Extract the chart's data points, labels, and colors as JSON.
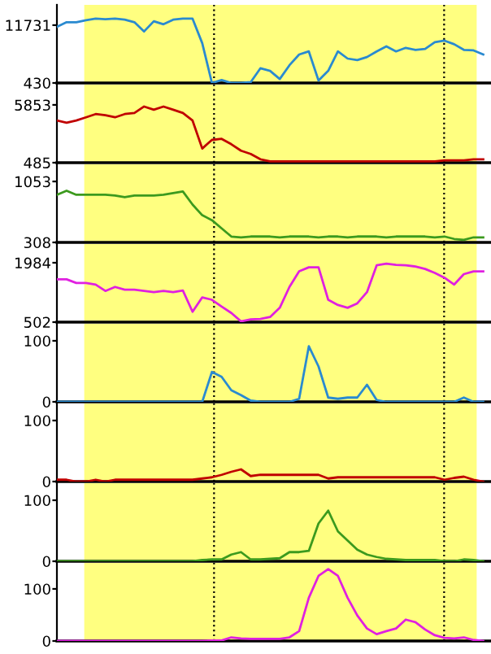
{
  "chart_data": [
    {
      "type": "line",
      "categories": [
        null,
        null,
        null,
        null,
        null,
        null,
        null,
        null,
        null,
        null,
        null,
        null,
        null,
        null,
        null,
        null,
        null,
        null,
        null,
        null,
        null,
        null,
        null,
        null,
        null,
        null,
        null,
        null,
        null,
        null,
        null,
        null,
        null,
        null,
        null,
        null,
        null,
        null,
        null,
        null,
        null,
        null,
        null,
        null,
        null
      ],
      "series": [
        {
          "color": "#2a8ad0",
          "values": [
            11400,
            12300,
            12300,
            12700,
            13000,
            12900,
            13000,
            12800,
            12300,
            10500,
            12500,
            11900,
            12800,
            13000,
            13000,
            8200,
            430,
            1000,
            430,
            430,
            600,
            3300,
            2800,
            1200,
            3900,
            6000,
            6600,
            900,
            2800,
            6600,
            5200,
            4900,
            5500,
            6600,
            7600,
            6600,
            7300,
            6900,
            7100,
            8400,
            8700,
            8000,
            6900,
            6800,
            6000
          ]
        }
      ],
      "ylim": [
        430,
        15700
      ],
      "yticks": [
        430,
        11731
      ],
      "tick_labels": "y"
    },
    {
      "type": "line",
      "categories": [
        null,
        null,
        null,
        null,
        null,
        null,
        null,
        null,
        null,
        null,
        null,
        null,
        null,
        null,
        null,
        null,
        null,
        null,
        null,
        null,
        null,
        null,
        null,
        null,
        null,
        null,
        null,
        null,
        null,
        null,
        null,
        null,
        null,
        null,
        null,
        null,
        null,
        null,
        null,
        null,
        null,
        null,
        null,
        null,
        null
      ],
      "series": [
        {
          "color": "#c00000",
          "values": [
            4400,
            4200,
            4400,
            4700,
            5000,
            4900,
            4700,
            5000,
            5100,
            5700,
            5400,
            5700,
            5400,
            5100,
            4400,
            1800,
            2600,
            2700,
            2200,
            1600,
            1300,
            800,
            600,
            600,
            600,
            600,
            600,
            600,
            600,
            600,
            600,
            600,
            600,
            600,
            600,
            600,
            600,
            600,
            600,
            600,
            700,
            700,
            700,
            800,
            800
          ]
        }
      ],
      "ylim": [
        485,
        7740
      ],
      "yticks": [
        485,
        5853
      ],
      "tick_labels": "y"
    },
    {
      "type": "line",
      "categories": [
        null,
        null,
        null,
        null,
        null,
        null,
        null,
        null,
        null,
        null,
        null,
        null,
        null,
        null,
        null,
        null,
        null,
        null,
        null,
        null,
        null,
        null,
        null,
        null,
        null,
        null,
        null,
        null,
        null,
        null,
        null,
        null,
        null,
        null,
        null,
        null,
        null,
        null,
        null,
        null,
        null,
        null,
        null,
        null,
        null
      ],
      "series": [
        {
          "color": "#3c9a1e",
          "values": [
            890,
            940,
            890,
            890,
            890,
            890,
            880,
            860,
            880,
            880,
            880,
            890,
            910,
            930,
            770,
            640,
            580,
            480,
            380,
            370,
            380,
            380,
            380,
            370,
            380,
            380,
            380,
            370,
            380,
            380,
            370,
            380,
            380,
            380,
            370,
            380,
            380,
            380,
            380,
            370,
            380,
            350,
            340,
            370,
            370
          ]
        }
      ],
      "ylim": [
        308,
        1263
      ],
      "yticks": [
        308,
        1053
      ],
      "tick_labels": "y"
    },
    {
      "type": "line",
      "categories": [
        null,
        null,
        null,
        null,
        null,
        null,
        null,
        null,
        null,
        null,
        null,
        null,
        null,
        null,
        null,
        null,
        null,
        null,
        null,
        null,
        null,
        null,
        null,
        null,
        null,
        null,
        null,
        null,
        null,
        null,
        null,
        null,
        null,
        null,
        null,
        null,
        null,
        null,
        null,
        null,
        null,
        null,
        null,
        null,
        null
      ],
      "series": [
        {
          "color": "#e020e0",
          "values": [
            1570,
            1570,
            1480,
            1480,
            1440,
            1280,
            1380,
            1310,
            1310,
            1280,
            1250,
            1280,
            1250,
            1290,
            760,
            1120,
            1060,
            890,
            730,
            520,
            570,
            580,
            630,
            860,
            1380,
            1770,
            1870,
            1870,
            1060,
            930,
            860,
            970,
            1250,
            1920,
            1960,
            1930,
            1920,
            1890,
            1830,
            1730,
            1610,
            1440,
            1700,
            1770,
            1770
          ]
        }
      ],
      "ylim": [
        502,
        2452
      ],
      "yticks": [
        502,
        1984
      ],
      "tick_labels": "y"
    },
    {
      "type": "line",
      "categories": [
        null,
        null,
        null,
        null,
        null,
        null,
        null,
        null,
        null,
        null,
        null,
        null,
        null,
        null,
        null,
        null,
        null,
        null,
        null,
        null,
        null,
        null,
        null,
        null,
        null,
        null,
        null,
        null,
        null,
        null,
        null,
        null,
        null,
        null,
        null,
        null,
        null,
        null,
        null,
        null,
        null,
        null,
        null,
        null,
        null
      ],
      "series": [
        {
          "color": "#2a8ad0",
          "values": [
            0,
            0,
            0,
            0,
            0,
            0,
            0,
            0,
            0,
            0,
            0,
            0,
            0,
            0,
            0,
            0,
            49,
            41,
            19,
            11,
            2,
            0,
            0,
            0,
            0,
            5,
            91,
            58,
            7,
            5,
            7,
            7,
            28,
            3,
            0,
            0,
            0,
            0,
            0,
            0,
            0,
            0,
            7,
            0,
            0
          ]
        }
      ],
      "ylim": [
        0,
        128
      ],
      "yticks": [
        0,
        100
      ],
      "tick_labels": "y"
    },
    {
      "type": "line",
      "categories": [
        null,
        null,
        null,
        null,
        null,
        null,
        null,
        null,
        null,
        null,
        null,
        null,
        null,
        null,
        null,
        null,
        null,
        null,
        null,
        null,
        null,
        null,
        null,
        null,
        null,
        null,
        null,
        null,
        null,
        null,
        null,
        null,
        null,
        null,
        null,
        null,
        null,
        null,
        null,
        null,
        null,
        null,
        null,
        null,
        null
      ],
      "series": [
        {
          "color": "#c00000",
          "values": [
            3,
            3,
            0,
            0,
            3,
            0,
            3,
            3,
            3,
            3,
            3,
            3,
            3,
            3,
            3,
            5,
            7,
            11,
            16,
            20,
            9,
            11,
            11,
            11,
            11,
            11,
            11,
            11,
            5,
            7,
            7,
            7,
            7,
            7,
            7,
            7,
            7,
            7,
            7,
            7,
            3,
            6,
            8,
            3,
            0
          ]
        }
      ],
      "ylim": [
        0,
        128
      ],
      "yticks": [
        0,
        100
      ],
      "tick_labels": "y"
    },
    {
      "type": "line",
      "categories": [
        null,
        null,
        null,
        null,
        null,
        null,
        null,
        null,
        null,
        null,
        null,
        null,
        null,
        null,
        null,
        null,
        null,
        null,
        null,
        null,
        null,
        null,
        null,
        null,
        null,
        null,
        null,
        null,
        null,
        null,
        null,
        null,
        null,
        null,
        null,
        null,
        null,
        null,
        null,
        null,
        null,
        null,
        null,
        null,
        null
      ],
      "series": [
        {
          "color": "#3c9a1e",
          "values": [
            0,
            0,
            0,
            0,
            0,
            0,
            0,
            0,
            0,
            0,
            0,
            0,
            0,
            0,
            0,
            2,
            3,
            3,
            11,
            15,
            3,
            3,
            4,
            5,
            15,
            15,
            17,
            62,
            83,
            49,
            34,
            19,
            11,
            7,
            4,
            3,
            2,
            2,
            2,
            2,
            0,
            0,
            3,
            2,
            0
          ]
        }
      ],
      "ylim": [
        0,
        128
      ],
      "yticks": [
        0,
        100
      ],
      "tick_labels": "y"
    },
    {
      "type": "line",
      "categories": [
        null,
        null,
        null,
        null,
        null,
        null,
        null,
        null,
        null,
        null,
        null,
        null,
        null,
        null,
        null,
        null,
        null,
        null,
        null,
        null,
        null,
        null,
        null,
        null,
        null,
        null,
        null,
        null,
        null,
        null,
        null,
        null,
        null,
        null,
        null,
        null,
        null,
        null,
        null,
        null,
        null,
        null,
        null,
        null,
        null
      ],
      "series": [
        {
          "color": "#e020e0",
          "values": [
            0,
            0,
            0,
            0,
            0,
            0,
            0,
            0,
            0,
            0,
            0,
            0,
            0,
            0,
            0,
            0,
            1,
            1,
            7,
            5,
            4,
            4,
            4,
            4,
            7,
            19,
            83,
            125,
            138,
            125,
            83,
            49,
            24,
            13,
            19,
            24,
            41,
            36,
            22,
            11,
            6,
            5,
            7,
            2,
            0
          ]
        }
      ],
      "ylim": [
        0,
        150
      ],
      "yticks": [
        0,
        100
      ],
      "tick_labels": "y"
    }
  ]
}
